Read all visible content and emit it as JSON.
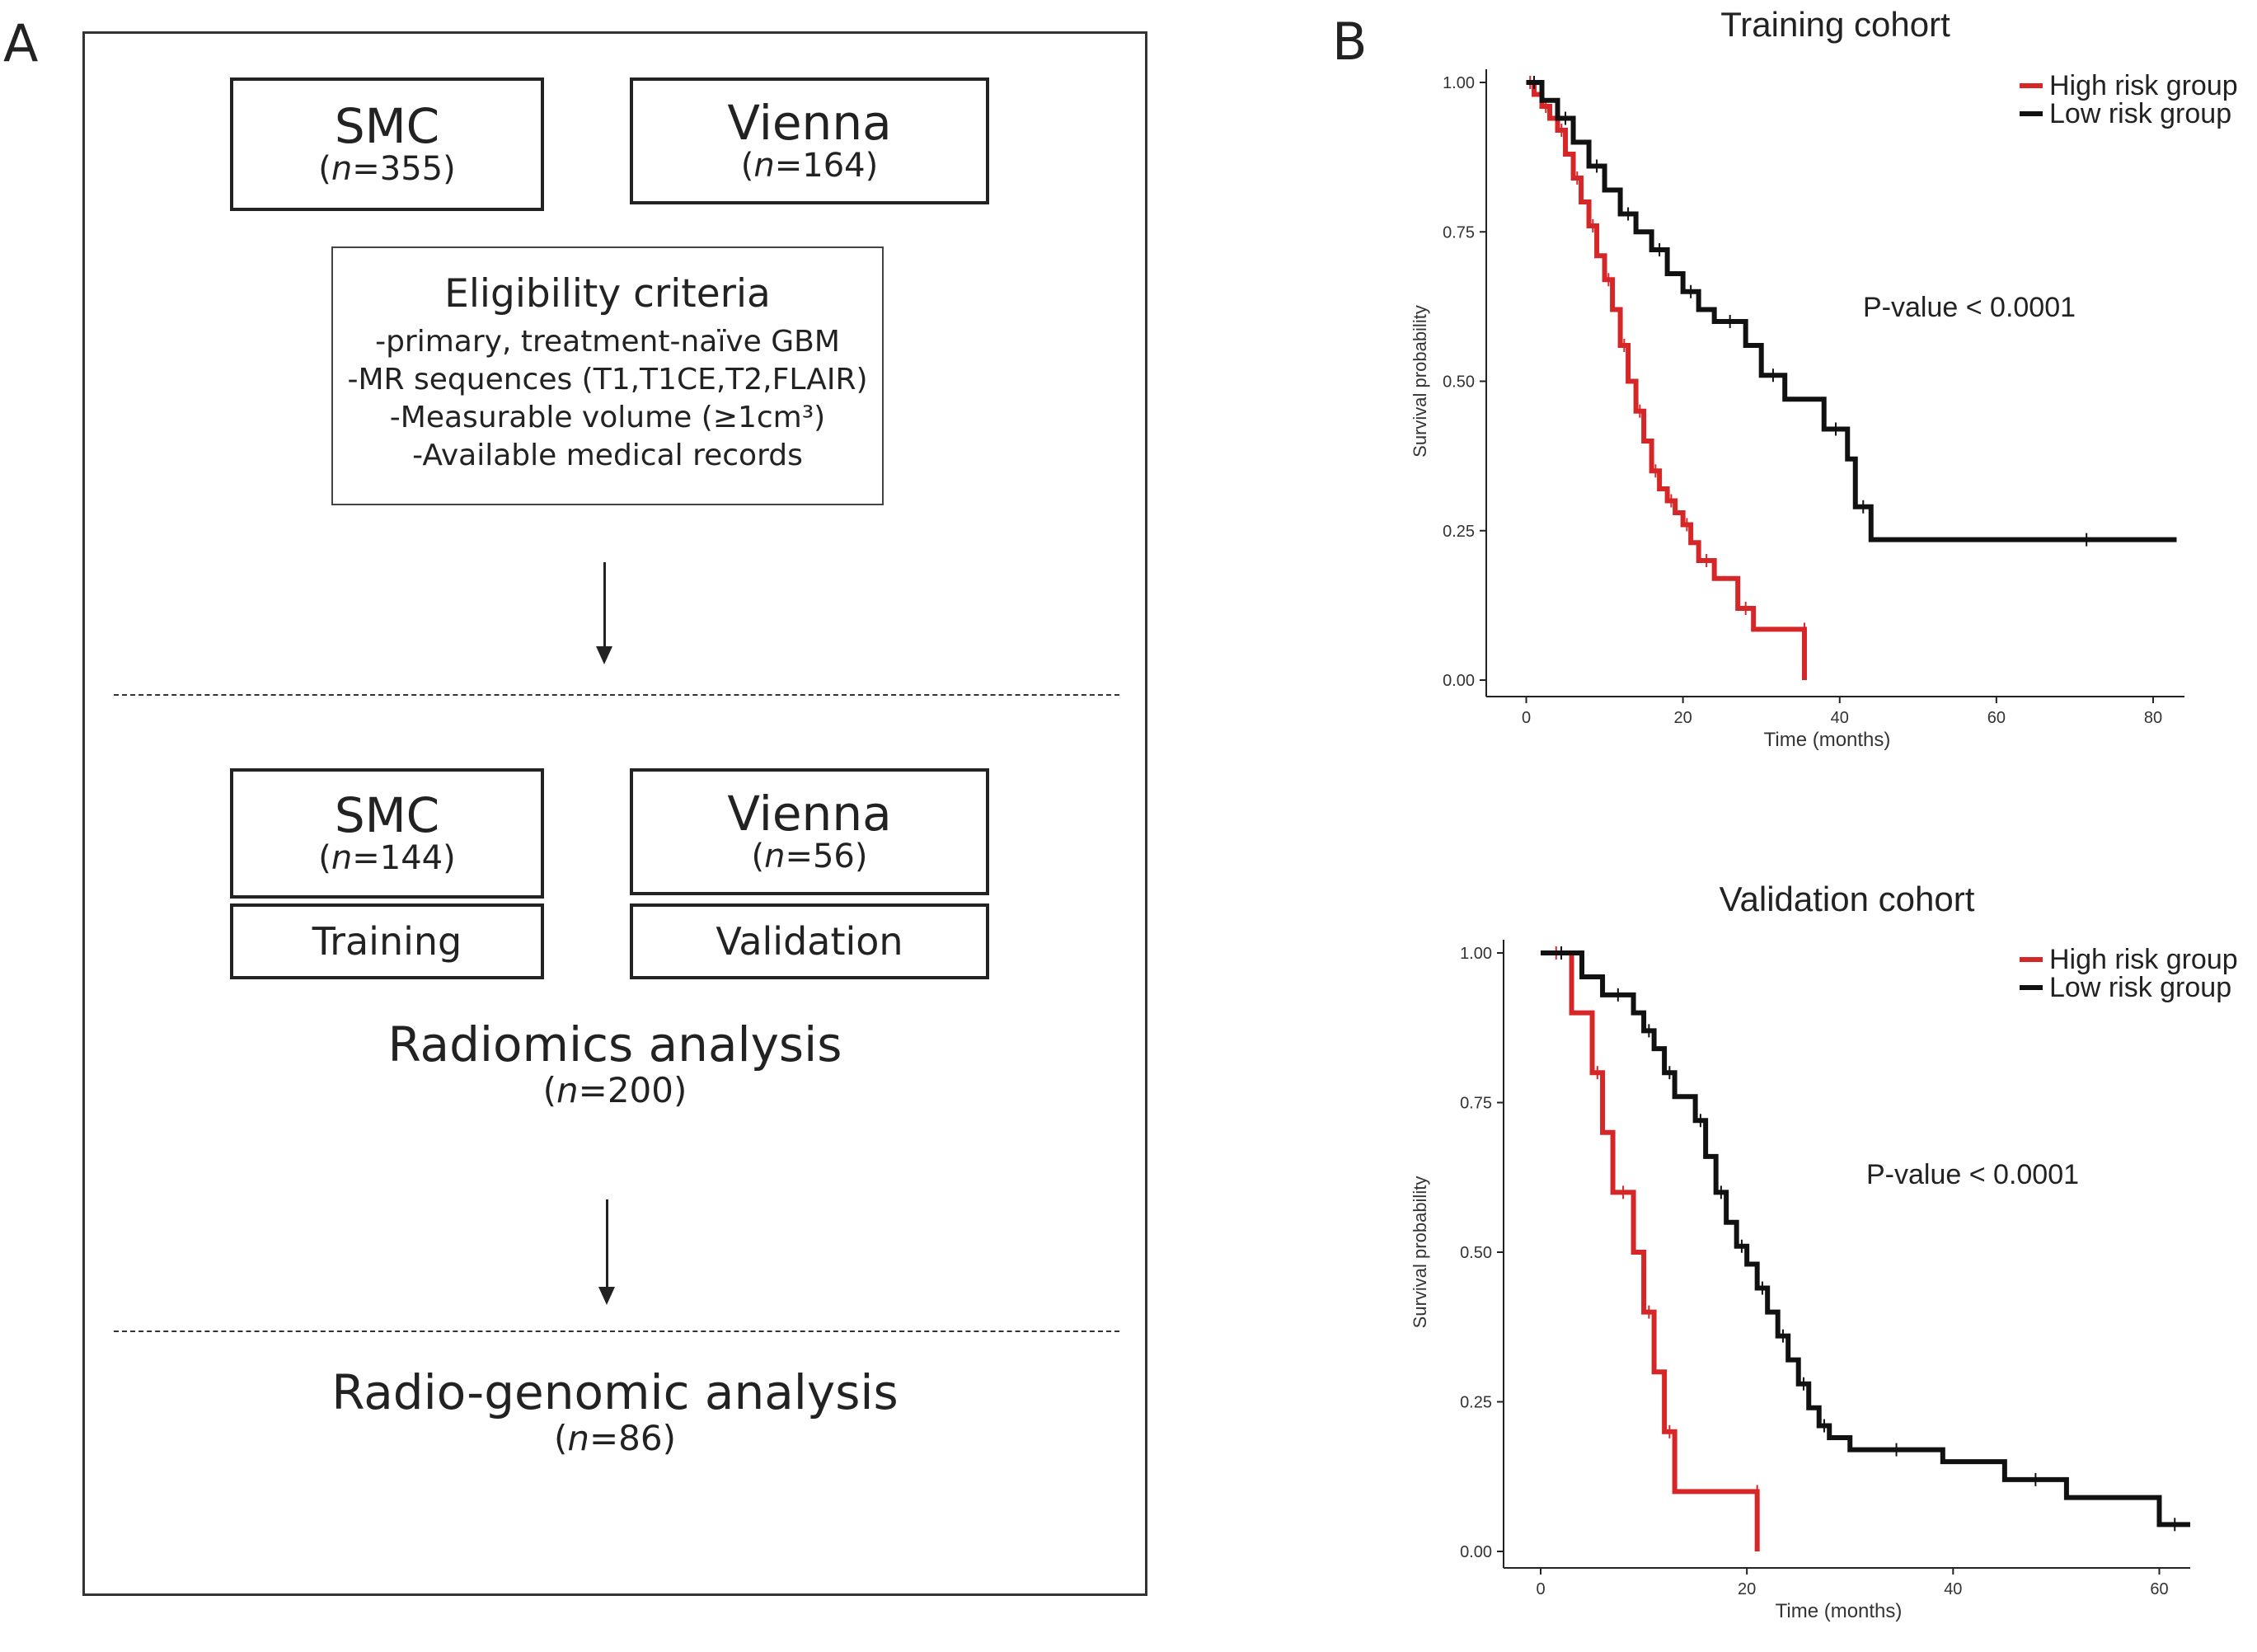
{
  "panel_a": {
    "letter": "A",
    "top_boxes": [
      {
        "name": "SMC",
        "n_prefix": "(",
        "n_italic": "n",
        "n_rest": "=355)"
      },
      {
        "name": "Vienna",
        "n_prefix": "(",
        "n_italic": "n",
        "n_rest": "=164)"
      }
    ],
    "criteria": {
      "title": "Eligibility criteria",
      "lines": [
        "-primary, treatment-naïve GBM",
        "-MR sequences (T1,T1CE,T2,FLAIR)",
        "-Measurable volume (≥1cm³)",
        "-Available medical records"
      ]
    },
    "mid_boxes": [
      {
        "name": "SMC",
        "n_prefix": "(",
        "n_italic": "n",
        "n_rest": "=144)",
        "role": "Training"
      },
      {
        "name": "Vienna",
        "n_prefix": "(",
        "n_italic": "n",
        "n_rest": "=56)",
        "role": "Validation"
      }
    ],
    "radiomics": {
      "title": "Radiomics analysis",
      "n_prefix": "(",
      "n_italic": "n",
      "n_rest": "=200)"
    },
    "radiogenomic": {
      "title": "Radio-genomic analysis",
      "n_prefix": "(",
      "n_italic": "n",
      "n_rest": "=86)"
    }
  },
  "panel_b": {
    "letter": "B"
  },
  "chart_data": [
    {
      "type": "line",
      "title": "Training cohort",
      "xlabel": "Time (months)",
      "ylabel": "Survival probability",
      "xlim": [
        -3,
        84
      ],
      "ylim": [
        0,
        1
      ],
      "xticks": [
        0,
        20,
        40,
        60,
        80
      ],
      "yticks": [
        0,
        0.25,
        0.5,
        0.75,
        1.0
      ],
      "ytick_labels": [
        "0.00",
        "0.25",
        "0.50",
        "0.75",
        "1.00"
      ],
      "annotation": "P-value < 0.0001",
      "legend_position": "top-right",
      "series": [
        {
          "name": "High risk group",
          "color": "#d62728",
          "x": [
            0,
            1,
            2,
            3,
            4,
            5,
            6,
            7,
            8,
            9,
            10,
            11,
            12,
            13,
            14,
            15,
            16,
            17,
            18,
            19,
            20,
            21,
            22,
            24,
            27,
            29,
            35.5,
            35.5
          ],
          "y": [
            1.0,
            0.98,
            0.96,
            0.94,
            0.92,
            0.88,
            0.84,
            0.8,
            0.76,
            0.71,
            0.67,
            0.62,
            0.56,
            0.5,
            0.45,
            0.4,
            0.35,
            0.32,
            0.3,
            0.28,
            0.26,
            0.23,
            0.2,
            0.17,
            0.12,
            0.085,
            0.085,
            0.0
          ]
        },
        {
          "name": "Low risk group",
          "color": "#111111",
          "x": [
            0,
            2,
            4,
            6,
            8,
            10,
            12,
            14,
            16,
            18,
            20,
            22,
            24,
            28,
            30,
            33,
            38,
            41,
            42,
            44,
            60,
            83
          ],
          "y": [
            1.0,
            0.97,
            0.94,
            0.9,
            0.86,
            0.82,
            0.78,
            0.75,
            0.72,
            0.68,
            0.65,
            0.62,
            0.6,
            0.56,
            0.51,
            0.47,
            0.42,
            0.37,
            0.29,
            0.235,
            0.235,
            0.235
          ]
        }
      ]
    },
    {
      "type": "line",
      "title": "Validation cohort",
      "xlabel": "Time (months)",
      "ylabel": "Survival probability",
      "xlim": [
        -2,
        63
      ],
      "ylim": [
        0,
        1
      ],
      "xticks": [
        0,
        20,
        40,
        60
      ],
      "yticks": [
        0,
        0.25,
        0.5,
        0.75,
        1.0
      ],
      "ytick_labels": [
        "0.00",
        "0.25",
        "0.50",
        "0.75",
        "1.00"
      ],
      "annotation": "P-value < 0.0001",
      "legend_position": "top-right",
      "series": [
        {
          "name": "High risk group",
          "color": "#d62728",
          "x": [
            0,
            3,
            5,
            6,
            7,
            9,
            10,
            11,
            12,
            13,
            21,
            21
          ],
          "y": [
            1.0,
            0.9,
            0.8,
            0.7,
            0.6,
            0.5,
            0.4,
            0.3,
            0.2,
            0.1,
            0.1,
            0.0
          ],
          "censor_x": []
        },
        {
          "name": "Low risk group",
          "color": "#111111",
          "x": [
            0,
            4,
            6,
            9,
            10,
            11,
            12,
            13,
            15,
            16,
            17,
            18,
            19,
            20,
            21,
            22,
            23,
            24,
            25,
            26,
            27,
            28,
            30,
            39,
            45,
            51,
            60,
            63
          ],
          "y": [
            1.0,
            0.96,
            0.93,
            0.9,
            0.87,
            0.84,
            0.8,
            0.76,
            0.72,
            0.66,
            0.6,
            0.55,
            0.51,
            0.48,
            0.44,
            0.4,
            0.36,
            0.32,
            0.28,
            0.24,
            0.21,
            0.19,
            0.17,
            0.15,
            0.12,
            0.09,
            0.045,
            0.045
          ]
        }
      ]
    }
  ]
}
